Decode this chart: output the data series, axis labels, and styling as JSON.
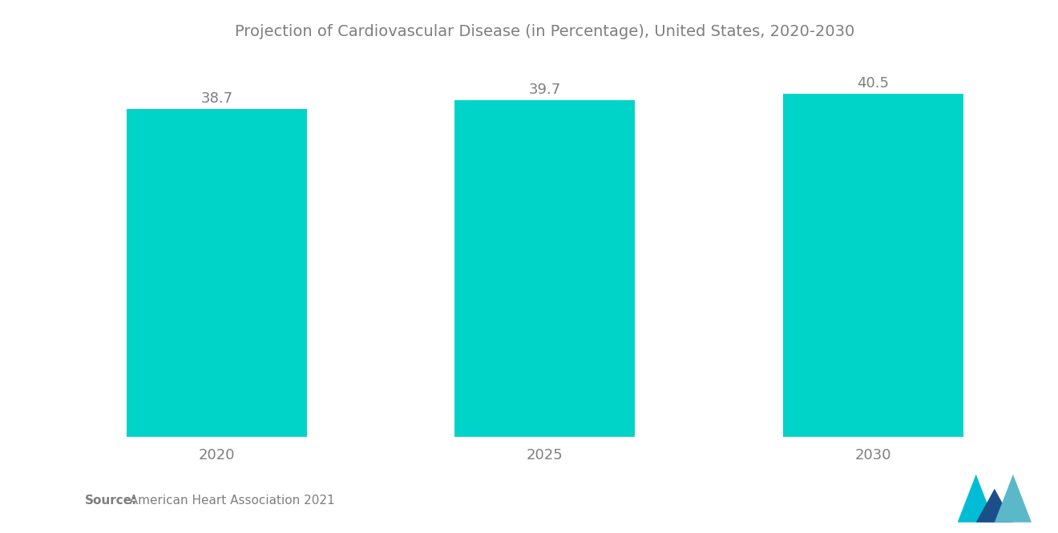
{
  "title": "Projection of Cardiovascular Disease (in Percentage), United States, 2020-2030",
  "categories": [
    "2020",
    "2025",
    "2030"
  ],
  "values": [
    38.7,
    39.7,
    40.5
  ],
  "bar_color": "#00D4C8",
  "value_labels": [
    "38.7",
    "39.7",
    "40.5"
  ],
  "source_label": "Source:",
  "source_text": "  American Heart Association 2021",
  "title_color": "#7f7f7f",
  "label_color": "#7f7f7f",
  "value_color": "#7f7f7f",
  "source_color": "#7f7f7f",
  "background_color": "#ffffff",
  "ylim": [
    0,
    44
  ],
  "bar_width": 0.55,
  "title_fontsize": 14,
  "label_fontsize": 13,
  "value_fontsize": 13
}
